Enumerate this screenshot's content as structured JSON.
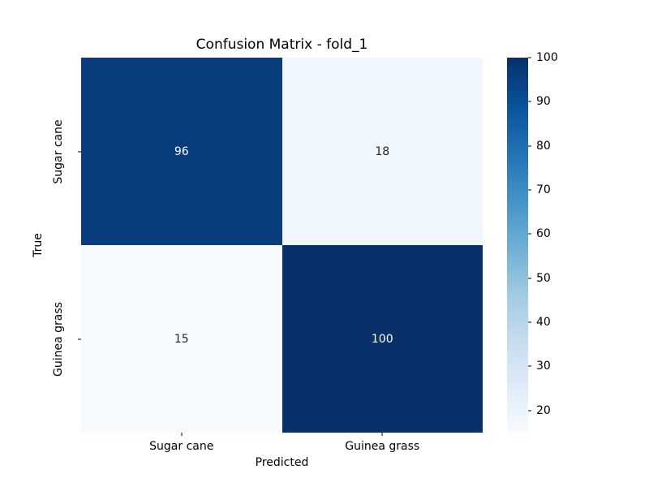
{
  "chart_data": {
    "type": "heatmap",
    "title": "Confusion Matrix - fold_1",
    "xlabel": "Predicted",
    "ylabel": "True",
    "x_categories": [
      "Sugar cane",
      "Guinea grass"
    ],
    "y_categories": [
      "Sugar cane",
      "Guinea grass"
    ],
    "values": [
      [
        96,
        18
      ],
      [
        15,
        100
      ]
    ],
    "vmin": 15,
    "vmax": 100,
    "colormap": "Blues",
    "grid": false,
    "legend_position": "colorbar-right",
    "colorbar_ticks": [
      100,
      90,
      80,
      70,
      60,
      50,
      40,
      30,
      20
    ],
    "cell_colors": [
      [
        "#083c7d",
        "#f0f6fd"
      ],
      [
        "#f7fbff",
        "#08306b"
      ]
    ],
    "cell_text_colors": [
      [
        "#ffffff",
        "#262626"
      ],
      [
        "#262626",
        "#ffffff"
      ]
    ],
    "colorbar_gradient_bottom_to_top": [
      "#f7fbff",
      "#deebf7",
      "#c6dbef",
      "#9ecae1",
      "#6baed6",
      "#4292c6",
      "#2171b5",
      "#08519c",
      "#08306b"
    ]
  }
}
